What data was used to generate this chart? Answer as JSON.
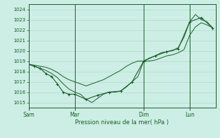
{
  "background_color": "#cceee4",
  "grid_color": "#aad4c8",
  "line_color": "#1a5c2a",
  "marker_color": "#1a5c2a",
  "xlabel": "Pression niveau de la mer( hPa )",
  "ylim": [
    1014.5,
    1024.5
  ],
  "yticks": [
    1015,
    1016,
    1017,
    1018,
    1019,
    1020,
    1021,
    1022,
    1023,
    1024
  ],
  "day_labels": [
    "Sam",
    "Mar",
    "Dim",
    "Lun"
  ],
  "day_positions": [
    0,
    48,
    120,
    168
  ],
  "xlim_max": 195,
  "series1_x": [
    0,
    6,
    12,
    18,
    24,
    30,
    36,
    42,
    48,
    54,
    60,
    66,
    72,
    78,
    84,
    90,
    96,
    102,
    108,
    114,
    120,
    126,
    132,
    138,
    144,
    150,
    156,
    162,
    168,
    174,
    180,
    186,
    192
  ],
  "series1_y": [
    1018.7,
    1018.6,
    1018.5,
    1018.4,
    1018.2,
    1017.9,
    1017.5,
    1017.2,
    1017.0,
    1016.8,
    1016.6,
    1016.8,
    1017.0,
    1017.2,
    1017.5,
    1017.8,
    1018.1,
    1018.5,
    1018.8,
    1019.0,
    1019.0,
    1019.0,
    1019.1,
    1019.3,
    1019.5,
    1019.6,
    1019.8,
    1020.1,
    1021.5,
    1022.3,
    1022.7,
    1022.5,
    1022.2
  ],
  "series2_x": [
    0,
    6,
    12,
    18,
    24,
    30,
    36,
    42,
    48,
    54,
    60,
    66,
    72,
    78,
    84,
    90,
    96,
    102,
    108,
    114,
    120,
    126,
    132,
    138,
    144,
    150,
    156,
    162,
    168,
    174,
    180,
    186,
    192
  ],
  "series2_y": [
    1018.7,
    1018.5,
    1018.3,
    1018.1,
    1017.8,
    1017.4,
    1016.8,
    1016.3,
    1016.0,
    1015.8,
    1015.3,
    1015.0,
    1015.4,
    1015.8,
    1016.0,
    1016.0,
    1016.1,
    1016.5,
    1017.0,
    1017.5,
    1019.0,
    1019.3,
    1019.5,
    1019.8,
    1019.9,
    1020.0,
    1020.3,
    1021.3,
    1022.8,
    1023.5,
    1023.0,
    1022.8,
    1022.2
  ],
  "series3_x": [
    0,
    6,
    12,
    18,
    24,
    30,
    36,
    42,
    48,
    60,
    72,
    84,
    96,
    108,
    120,
    132,
    144,
    156,
    168,
    180,
    192
  ],
  "series3_y": [
    1018.7,
    1018.5,
    1018.3,
    1017.8,
    1017.5,
    1016.8,
    1016.0,
    1015.8,
    1015.8,
    1015.3,
    1015.7,
    1016.0,
    1016.1,
    1017.0,
    1019.0,
    1019.5,
    1019.9,
    1020.2,
    1022.8,
    1023.2,
    1022.2
  ]
}
